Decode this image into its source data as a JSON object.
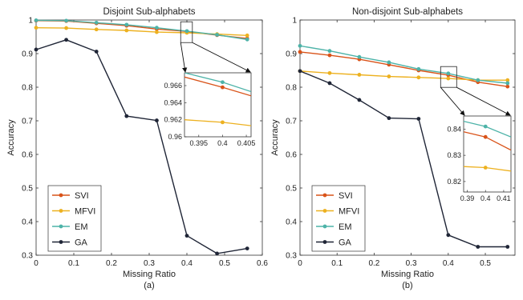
{
  "chart_data": [
    {
      "type": "line",
      "title": "Disjoint Sub-alphabets",
      "xlabel": "Missing Ratio",
      "ylabel": "Accuracy",
      "caption": "(a)",
      "xlim": [
        0,
        0.6
      ],
      "ylim": [
        0.3,
        1.0
      ],
      "x_ticks": [
        "0",
        "0.1",
        "0.2",
        "0.3",
        "0.4",
        "0.5",
        "0.6"
      ],
      "y_ticks": [
        "0.3",
        "0.4",
        "0.5",
        "0.6",
        "0.7",
        "0.8",
        "0.9",
        "1"
      ],
      "legend_position": "bottom-left",
      "grid": false,
      "x": [
        0,
        0.08,
        0.16,
        0.24,
        0.32,
        0.4,
        0.48,
        0.56
      ],
      "series": [
        {
          "name": "SVI",
          "color": "#d95319",
          "values": [
            0.998,
            0.997,
            0.99,
            0.983,
            0.973,
            0.966,
            0.955,
            0.945
          ]
        },
        {
          "name": "MFVI",
          "color": "#edb120",
          "values": [
            0.977,
            0.976,
            0.972,
            0.969,
            0.964,
            0.962,
            0.958,
            0.954
          ]
        },
        {
          "name": "EM",
          "color": "#4db3a8",
          "values": [
            0.999,
            0.998,
            0.992,
            0.986,
            0.977,
            0.967,
            0.956,
            0.942
          ]
        },
        {
          "name": "GA",
          "color": "#1f2536",
          "values": [
            0.912,
            0.941,
            0.906,
            0.714,
            0.701,
            0.358,
            0.305,
            0.32
          ]
        }
      ],
      "inset": {
        "xlim": [
          0.392,
          0.406
        ],
        "ylim": [
          0.96,
          0.9675
        ],
        "x_ticks": [
          "0.395",
          "0.4",
          "0.405"
        ],
        "y_ticks": [
          "0.96",
          "0.962",
          "0.964",
          "0.966"
        ],
        "x": [
          0.392,
          0.4,
          0.406
        ],
        "series": [
          {
            "name": "SVI",
            "values": [
              0.967,
              0.9658,
              0.9648
            ]
          },
          {
            "name": "MFVI",
            "values": [
              0.962,
              0.9617,
              0.9613
            ]
          },
          {
            "name": "EM",
            "values": [
              0.9675,
              0.9664,
              0.9653
            ]
          }
        ]
      }
    },
    {
      "type": "line",
      "title": "Non-disjoint Sub-alphabets",
      "xlabel": "Missing Ratio",
      "ylabel": "Accuracy",
      "caption": "(b)",
      "xlim": [
        0,
        0.58
      ],
      "ylim": [
        0.3,
        1.0
      ],
      "x_ticks": [
        "0",
        "0.1",
        "0.2",
        "0.3",
        "0.4",
        "0.5"
      ],
      "y_ticks": [
        "0.3",
        "0.4",
        "0.5",
        "0.6",
        "0.7",
        "0.8",
        "0.9",
        "1"
      ],
      "legend_position": "bottom-left",
      "grid": false,
      "x": [
        0,
        0.08,
        0.16,
        0.24,
        0.32,
        0.4,
        0.48,
        0.56
      ],
      "series": [
        {
          "name": "SVI",
          "color": "#d95319",
          "values": [
            0.905,
            0.895,
            0.883,
            0.867,
            0.85,
            0.836,
            0.815,
            0.802
          ]
        },
        {
          "name": "MFVI",
          "color": "#edb120",
          "values": [
            0.848,
            0.842,
            0.837,
            0.832,
            0.829,
            0.826,
            0.821,
            0.821
          ]
        },
        {
          "name": "EM",
          "color": "#4db3a8",
          "values": [
            0.923,
            0.908,
            0.89,
            0.874,
            0.854,
            0.841,
            0.821,
            0.812
          ]
        },
        {
          "name": "GA",
          "color": "#1f2536",
          "values": [
            0.848,
            0.812,
            0.762,
            0.708,
            0.706,
            0.36,
            0.325,
            0.325
          ]
        }
      ],
      "inset": {
        "xlim": [
          0.388,
          0.414
        ],
        "ylim": [
          0.816,
          0.845
        ],
        "x_ticks": [
          "0.39",
          "0.4",
          "0.41"
        ],
        "y_ticks": [
          "0.82",
          "0.83",
          "0.84"
        ],
        "x": [
          0.388,
          0.4,
          0.414
        ],
        "series": [
          {
            "name": "SVI",
            "values": [
              0.839,
              0.837,
              0.832
            ]
          },
          {
            "name": "MFVI",
            "values": [
              0.8257,
              0.8253,
              0.824
            ]
          },
          {
            "name": "EM",
            "values": [
              0.843,
              0.841,
              0.837
            ]
          }
        ]
      }
    }
  ]
}
